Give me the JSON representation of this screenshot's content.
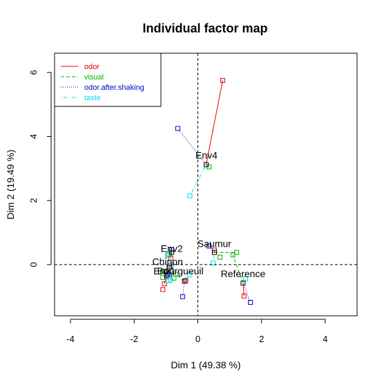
{
  "chart_data": {
    "type": "scatter",
    "title": "Individual factor map",
    "xlabel": "Dim 1 (49.38 %)",
    "ylabel": "Dim 2 (19.49 %)",
    "xlim": [
      -4.5,
      5.0
    ],
    "ylim": [
      -1.6,
      6.6
    ],
    "x_ticks": [
      -4,
      -2,
      0,
      2,
      4
    ],
    "y_ticks": [
      0,
      2,
      4,
      6
    ],
    "x_tick_labels": [
      "-4",
      "-2",
      "0",
      "2",
      "4"
    ],
    "y_tick_labels": [
      "0",
      "2",
      "4",
      "6"
    ],
    "reference_lines": {
      "x": 0,
      "y": 0,
      "style": "dashed"
    },
    "legend": {
      "position": "top-left",
      "entries": [
        {
          "name": "odor",
          "color": "#DF0000",
          "dash": "solid"
        },
        {
          "name": "visual",
          "color": "#00B000",
          "dash": "dashed"
        },
        {
          "name": "odor.after.shaking",
          "color": "#0000CC",
          "dash": "dotted"
        },
        {
          "name": "taste",
          "color": "#00DDEE",
          "dash": "dotdash"
        }
      ]
    },
    "individuals": [
      {
        "name": "Env4",
        "label_pos": [
          0.27,
          3.42
        ],
        "center": [
          0.26,
          3.12
        ],
        "partial": {
          "odor": [
            0.78,
            5.75
          ],
          "visual": [
            0.35,
            3.05
          ],
          "odor.after.shaking": [
            -0.63,
            4.25
          ],
          "taste": [
            -0.25,
            2.15
          ]
        }
      },
      {
        "name": "Saumur",
        "label_pos": [
          0.52,
          0.65
        ],
        "center": [
          0.52,
          0.38
        ],
        "partial": {
          "odor": [
            0.52,
            0.45
          ],
          "visual": [
            1.22,
            0.38
          ],
          "odor.after.shaking": [
            0.35,
            0.58
          ],
          "taste": [
            0.48,
            0.05
          ]
        }
      },
      {
        "name": "Reference",
        "label_pos": [
          1.42,
          -0.28
        ],
        "center": [
          1.42,
          -0.58
        ],
        "partial": {
          "odor": [
            1.45,
            -0.98
          ],
          "visual": [
            1.1,
            0.3
          ],
          "odor.after.shaking": [
            1.65,
            -1.18
          ],
          "taste": [
            1.5,
            -0.45
          ]
        }
      },
      {
        "name": "Env2",
        "label_pos": [
          -0.82,
          0.5
        ],
        "center": [
          -0.82,
          0.38
        ],
        "partial": {
          "odor": [
            -0.85,
            0.2
          ],
          "visual": [
            -0.92,
            0.32
          ],
          "odor.after.shaking": [
            -0.82,
            0.46
          ],
          "taste": [
            -0.95,
            0.28
          ]
        }
      },
      {
        "name": "Chinon",
        "label_pos": [
          -0.95,
          0.09
        ],
        "center": [
          -0.9,
          -0.1
        ],
        "partial": {
          "odor": [
            -0.88,
            -0.05
          ],
          "visual": [
            -1.02,
            -0.2
          ],
          "odor.after.shaking": [
            -0.95,
            -0.3
          ],
          "taste": [
            -0.82,
            0.0
          ]
        }
      },
      {
        "name": "Env1",
        "label_pos": [
          -1.05,
          -0.2
        ],
        "center": [
          -0.98,
          -0.35
        ],
        "partial": {
          "odor": [
            -1.05,
            -0.6
          ],
          "visual": [
            -1.1,
            -0.4
          ],
          "odor.after.shaking": [
            -0.9,
            -0.3
          ],
          "taste": [
            -0.92,
            -0.5
          ]
        }
      },
      {
        "name": "Bourgueuil",
        "label_pos": [
          -0.55,
          -0.2
        ],
        "center": [
          -0.42,
          -0.52
        ],
        "partial": {
          "odor": [
            -0.38,
            -0.5
          ],
          "visual": [
            -0.7,
            -0.3
          ],
          "odor.after.shaking": [
            -0.48,
            -1.0
          ],
          "taste": [
            -0.25,
            -0.32
          ]
        }
      }
    ],
    "extra_points": [
      {
        "series": "odor",
        "point": [
          -1.1,
          -0.78
        ]
      },
      {
        "series": "taste",
        "point": [
          -0.86,
          -0.48
        ]
      },
      {
        "series": "visual",
        "point": [
          -0.75,
          -0.42
        ]
      },
      {
        "series": "visual",
        "point": [
          0.69,
          0.23
        ]
      }
    ]
  }
}
